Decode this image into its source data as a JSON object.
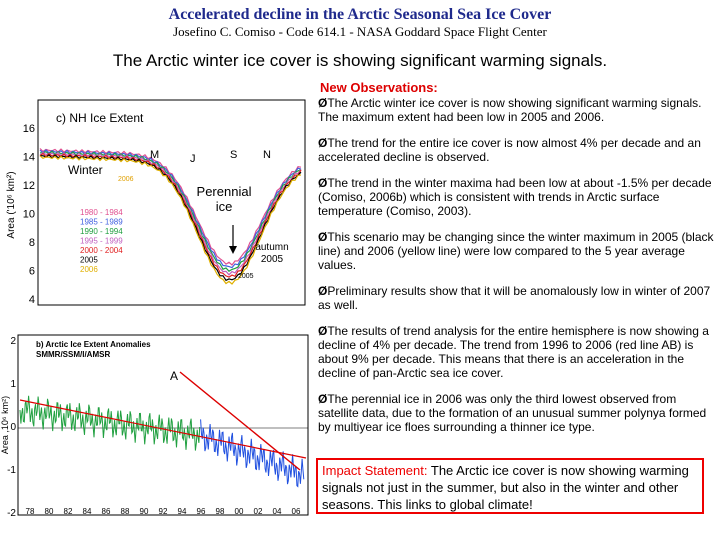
{
  "header": {
    "title": "Accelerated decline in the Arctic Seasonal Sea Ice Cover",
    "subtitle": "Josefino C. Comiso - Code 614.1 - NASA Goddard Space Flight Center"
  },
  "headline": "The Arctic winter ice cover is showing significant warming signals.",
  "observations": {
    "heading": "New Observations:",
    "bullets": [
      "The Arctic winter ice cover is now showing significant warming signals.  The maximum extent had been low in 2005 and 2006.",
      "The trend for the entire ice cover is now almost 4% per decade and an accelerated decline is observed.",
      "The trend in the winter maxima had been low at about -1.5% per decade (Comiso, 2006b) which is consistent with trends in Arctic surface temperature (Comiso, 2003).",
      "This scenario may be changing since the winter maximum in 2005 (black line) and 2006 (yellow line) were low compared to the 5 year average values.",
      "Preliminary results show that it will be anomalously low in winter of 2007 as well.",
      "The results of trend analysis for the entire hemisphere is now showing a decline of 4% per decade. The trend from 1996 to 2006 (red line AB) is about 9% per decade.  This means that there is an acceleration in the decline of pan-Arctic sea ice cover.",
      "The perennial ice in 2006 was only the third lowest observed from satellite data, due to the formation of an unusual summer polynya formed by multiyear ice floes surrounding a thinner ice type."
    ]
  },
  "impact": {
    "label": "Impact Statement:",
    "text": " The Arctic ice cover is now showing warming signals not just in the summer, but also in the winter and other seasons. This links to global climate!"
  },
  "figure_top": {
    "title": "c) NH Ice Extent",
    "y_label": "Area ('10⁶ km²)",
    "y_ticks": [
      "16",
      "14",
      "12",
      "10",
      "8",
      "6",
      "4"
    ],
    "months": [
      "M",
      "J",
      "S",
      "N"
    ],
    "winter": "Winter",
    "year_2006": "2006",
    "perennial": "Perennial ice",
    "autumn": "autumn 2005",
    "summer_2005": "2005",
    "legend": [
      "1980 - 1984",
      "1985 - 1989",
      "1990 - 1994",
      "1995 - 1999",
      "2000 - 2004",
      "2005",
      "2006"
    ]
  },
  "figure_bottom": {
    "title": "b) Arctic Ice Extent Anomalies",
    "subtitle": "SMMR/SSM/I/AMSR",
    "y_label": "Area ,10⁶ km²)",
    "y_ticks": [
      "2",
      "1",
      "0",
      "-1",
      "-2"
    ],
    "x_ticks": [
      "78",
      "80",
      "82",
      "84",
      "86",
      "88",
      "90",
      "92",
      "94",
      "96",
      "98",
      "00",
      "02",
      "04",
      "06"
    ],
    "point_label": "A"
  }
}
